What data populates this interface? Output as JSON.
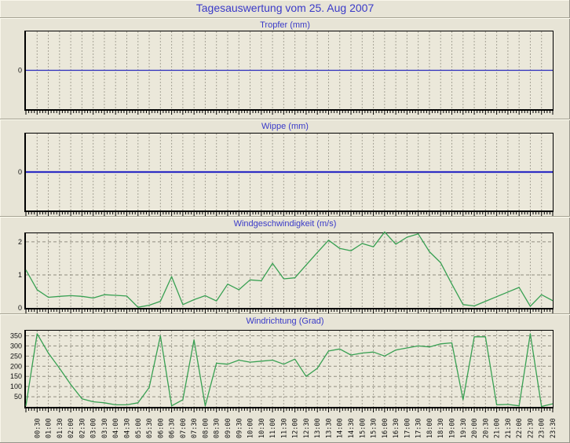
{
  "header": {
    "title": "Tagesauswertung vom 25. Aug 2007"
  },
  "colors": {
    "background": "#e7e4d6",
    "plot_bg": "#ebe8da",
    "grid_vertical": "#a6a396",
    "grid_horizontal": "#8f8c7f",
    "axis_frame": "#000000",
    "title_blue": "#3a3ac8",
    "rain_line_blue": "#2b2bbc",
    "wind_line_green": "#38a052",
    "tick_label": "#111111"
  },
  "chart_data": {
    "type": "line",
    "layout_hint": "four stacked panels, shared x axis 00:00-23:30 every 30 min, grid on, labels only under bottom panel",
    "x_times": [
      "00:00",
      "00:30",
      "01:00",
      "01:30",
      "02:00",
      "02:30",
      "03:00",
      "03:30",
      "04:00",
      "04:30",
      "05:00",
      "05:30",
      "06:00",
      "06:30",
      "07:00",
      "07:30",
      "08:00",
      "08:30",
      "09:00",
      "09:30",
      "10:00",
      "10:30",
      "11:00",
      "11:30",
      "12:00",
      "12:30",
      "13:00",
      "13:30",
      "14:00",
      "14:30",
      "15:00",
      "15:30",
      "16:00",
      "16:30",
      "17:00",
      "17:30",
      "18:00",
      "18:30",
      "19:00",
      "19:30",
      "20:00",
      "20:30",
      "21:00",
      "21:30",
      "22:00",
      "22:30",
      "23:00",
      "23:30"
    ],
    "x_axis_labels": [
      "00:30",
      "01:00",
      "01:30",
      "02:00",
      "02:30",
      "03:00",
      "03:30",
      "04:00",
      "04:30",
      "05:00",
      "05:30",
      "06:00",
      "06:30",
      "07:00",
      "07:30",
      "08:00",
      "08:30",
      "09:00",
      "09:30",
      "10:00",
      "10:30",
      "11:00",
      "11:30",
      "12:00",
      "12:30",
      "13:00",
      "13:30",
      "14:00",
      "14:30",
      "15:00",
      "15:30",
      "16:00",
      "16:30",
      "17:00",
      "17:30",
      "18:00",
      "18:30",
      "19:00",
      "19:30",
      "20:00",
      "20:30",
      "21:00",
      "21:30",
      "22:00",
      "22:30",
      "23:00",
      "23:30"
    ],
    "panels": [
      {
        "title": "Tropfer (mm)",
        "y_ticks": [
          0
        ],
        "ylim": [
          -1.2,
          1.2
        ],
        "line_color": "#2b2bbc",
        "line_width": 1.2,
        "series_name": "tropfer-series",
        "show_x_labels": false,
        "values": [
          0,
          0,
          0,
          0,
          0,
          0,
          0,
          0,
          0,
          0,
          0,
          0,
          0,
          0,
          0,
          0,
          0,
          0,
          0,
          0,
          0,
          0,
          0,
          0,
          0,
          0,
          0,
          0,
          0,
          0,
          0,
          0,
          0,
          0,
          0,
          0,
          0,
          0,
          0,
          0,
          0,
          0,
          0,
          0,
          0,
          0,
          0,
          0
        ]
      },
      {
        "title": "Wippe (mm)",
        "y_ticks": [
          0
        ],
        "ylim": [
          -1.2,
          1.2
        ],
        "line_color": "#2f2fc4",
        "line_width": 2.2,
        "series_name": "wippe-series",
        "show_x_labels": false,
        "values": [
          0,
          0,
          0,
          0,
          0,
          0,
          0,
          0,
          0,
          0,
          0,
          0,
          0,
          0,
          0,
          0,
          0,
          0,
          0,
          0,
          0,
          0,
          0,
          0,
          0,
          0,
          0,
          0,
          0,
          0,
          0,
          0,
          0,
          0,
          0,
          0,
          0,
          0,
          0,
          0,
          0,
          0,
          0,
          0,
          0,
          0,
          0,
          0
        ]
      },
      {
        "title": "Windgeschwindigkeit (m/s)",
        "y_ticks": [
          0,
          1,
          2
        ],
        "ylim": [
          0,
          2.26
        ],
        "line_color": "#38a052",
        "line_width": 1.3,
        "series_name": "windspeed-series",
        "show_x_labels": false,
        "values": [
          1.15,
          0.55,
          0.32,
          0.35,
          0.37,
          0.35,
          0.3,
          0.4,
          0.38,
          0.36,
          0.02,
          0.08,
          0.2,
          0.95,
          0.1,
          0.25,
          0.37,
          0.21,
          0.72,
          0.55,
          0.85,
          0.82,
          1.35,
          0.88,
          0.91,
          1.3,
          1.68,
          2.05,
          1.8,
          1.73,
          1.95,
          1.85,
          2.3,
          1.93,
          2.14,
          2.24,
          1.7,
          1.37,
          0.72,
          0.1,
          0.06,
          0.2,
          0.34,
          0.48,
          0.62,
          0.05,
          0.4,
          0.22
        ]
      },
      {
        "title": "Windrichtung (Grad)",
        "y_ticks": [
          50,
          100,
          150,
          200,
          250,
          300,
          350
        ],
        "ylim": [
          0,
          375
        ],
        "line_color": "#38a052",
        "line_width": 1.3,
        "series_name": "winddirection-series",
        "show_x_labels": true,
        "values": [
          5,
          360,
          265,
          190,
          110,
          40,
          25,
          20,
          10,
          10,
          20,
          95,
          350,
          5,
          35,
          330,
          5,
          215,
          210,
          230,
          220,
          225,
          230,
          210,
          235,
          150,
          190,
          275,
          285,
          255,
          265,
          270,
          250,
          280,
          290,
          300,
          295,
          310,
          315,
          35,
          345,
          345,
          10,
          12,
          5,
          360,
          2,
          15
        ]
      }
    ]
  }
}
